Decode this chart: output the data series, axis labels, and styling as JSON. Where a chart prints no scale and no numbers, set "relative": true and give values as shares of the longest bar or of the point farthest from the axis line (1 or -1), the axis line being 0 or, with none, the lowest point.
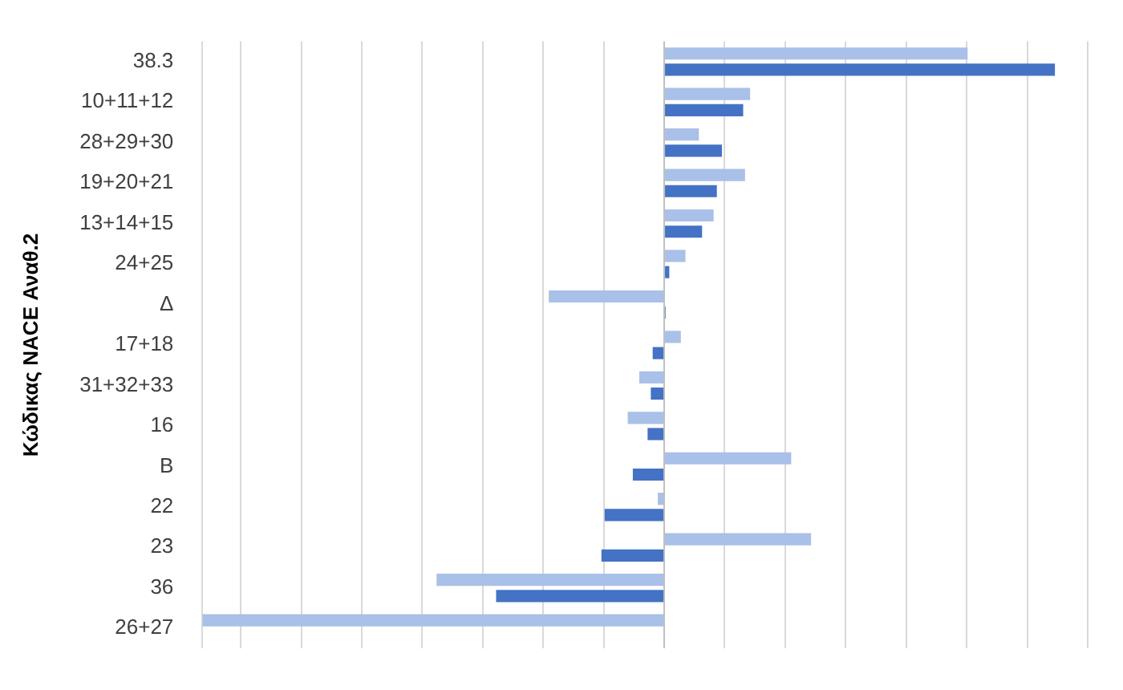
{
  "chart_data": {
    "type": "bar",
    "orientation": "horizontal",
    "relative": true,
    "ylabel": "Κώδικας NACE Αναθ.2",
    "grid": "x",
    "categories": [
      "38.3",
      "10+11+12",
      "28+29+30",
      "19+20+21",
      "13+14+15",
      "24+25",
      "Δ",
      "17+18",
      "31+32+33",
      "16",
      "Β",
      "22",
      "23",
      "36",
      "26+27"
    ],
    "series": [
      {
        "color": "#a9c0e8",
        "values": [
          0.657,
          0.186,
          0.075,
          0.175,
          0.107,
          0.046,
          -0.25,
          0.036,
          -0.054,
          -0.079,
          0.275,
          -0.014,
          0.318,
          -0.493,
          -1
        ]
      },
      {
        "color": "#4472c4",
        "values": [
          0.846,
          0.171,
          0.125,
          0.114,
          0.082,
          0.011,
          0.003,
          -0.025,
          -0.029,
          -0.036,
          -0.068,
          -0.129,
          -0.136,
          -0.364,
          null
        ]
      }
    ]
  }
}
